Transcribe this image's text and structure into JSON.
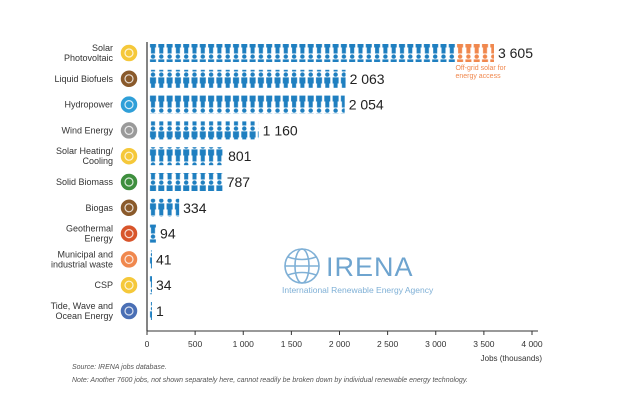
{
  "chart_data": {
    "type": "bar",
    "categories": [
      "Solar Photovoltaic",
      "Liquid Biofuels",
      "Hydropower",
      "Wind Energy",
      "Solar Heating/ Cooling",
      "Solid Biomass",
      "Biogas",
      "Geothermal Energy",
      "Municipal and industrial waste",
      "CSP",
      "Tide, Wave and Ocean Energy"
    ],
    "category_lines": [
      [
        "Solar",
        "Photovoltaic"
      ],
      [
        "Liquid Biofuels"
      ],
      [
        "Hydropower"
      ],
      [
        "Wind Energy"
      ],
      [
        "Solar Heating/",
        "Cooling"
      ],
      [
        "Solid Biomass"
      ],
      [
        "Biogas"
      ],
      [
        "Geothermal",
        "Energy"
      ],
      [
        "Municipal and",
        "industrial waste"
      ],
      [
        "CSP"
      ],
      [
        "Tide, Wave and",
        "Ocean Energy"
      ]
    ],
    "values": [
      3605,
      2063,
      2054,
      1160,
      801,
      787,
      334,
      94,
      41,
      34,
      1
    ],
    "value_labels": [
      "3 605",
      "2 063",
      "2 054",
      "1 160",
      "801",
      "787",
      "334",
      "94",
      "41",
      "34",
      "1"
    ],
    "offgrid_solar": {
      "value": 390,
      "annotation": [
        "Off-grid solar for",
        "energy access"
      ]
    },
    "xlabel": "Jobs (thousands)",
    "ylabel": "",
    "xlim": [
      0,
      4000
    ],
    "xticks": [
      0,
      500,
      1000,
      1500,
      2000,
      2500,
      3000,
      3500,
      4000
    ],
    "xtick_labels": [
      "0",
      "500",
      "1 000",
      "1 500",
      "2 000",
      "2 500",
      "3 000",
      "3 500",
      "4 000"
    ],
    "grid": false,
    "icons": [
      "sun-icon",
      "leaf-drop-icon",
      "water-drop-icon",
      "turbine-icon",
      "sun-icon",
      "leaf-icon",
      "leaf-icon",
      "thermometer-icon",
      "waste-icon",
      "sun-icon",
      "wave-icon"
    ],
    "icon_colors": [
      "#f5c83a",
      "#8a5a2b",
      "#2f9fd8",
      "#9a9a9a",
      "#f5c83a",
      "#3e8f3e",
      "#8a5a2b",
      "#d8552b",
      "#f0884e",
      "#f5c83a",
      "#4a6fb5"
    ],
    "colors": {
      "bar": "#1f7fc0",
      "offgrid": "#f0884e",
      "axis": "#333333"
    }
  },
  "footnotes": {
    "source": "Source: IRENA jobs database.",
    "note": "Note: Another 7600 jobs, not shown separately here, cannot readily be broken down by individual renewable energy technology."
  },
  "watermark": {
    "name": "IRENA",
    "subtitle": "International Renewable Energy Agency"
  }
}
